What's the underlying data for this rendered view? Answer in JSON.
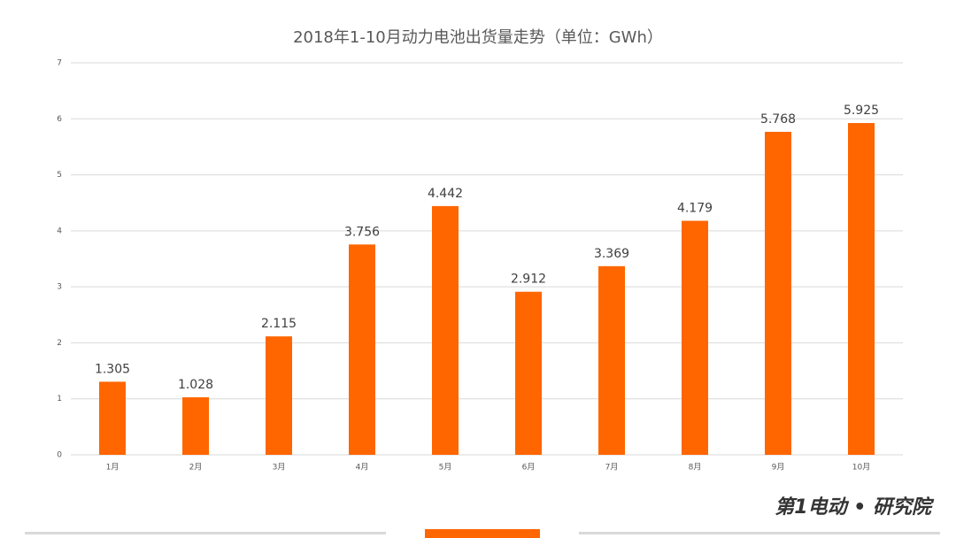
{
  "chart_data": {
    "type": "bar",
    "title": "2018年1-10月动力电池出货量走势（单位：GWh）",
    "categories": [
      "1月",
      "2月",
      "3月",
      "4月",
      "5月",
      "6月",
      "7月",
      "8月",
      "9月",
      "10月"
    ],
    "values": [
      1.305,
      1.028,
      2.115,
      3.756,
      4.442,
      2.912,
      3.369,
      4.179,
      5.768,
      5.925
    ],
    "color": "#ff6600",
    "ylim": [
      0,
      7
    ],
    "yticks": [
      0,
      1,
      2,
      3,
      4,
      5,
      6,
      7
    ],
    "grid": true
  },
  "watermark": "第1电动 • 研究院"
}
